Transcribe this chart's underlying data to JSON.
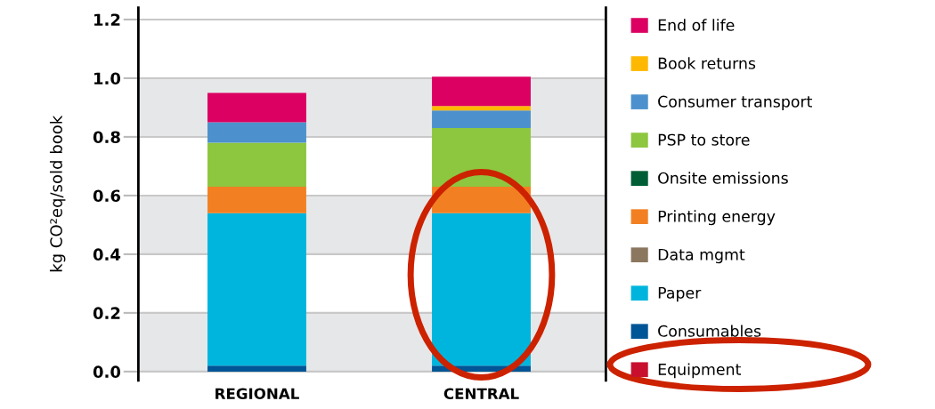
{
  "chart_data": {
    "type": "bar",
    "stacked": true,
    "ylabel": "kg CO²eq/sold book",
    "categories": [
      "REGIONAL",
      "CENTRAL"
    ],
    "series": [
      {
        "name": "Equipment",
        "color": "#c8102e",
        "values": [
          0,
          0
        ]
      },
      {
        "name": "Consumables",
        "color": "#005596",
        "values": [
          0.02,
          0.02
        ]
      },
      {
        "name": "Paper",
        "color": "#00b5dd",
        "values": [
          0.52,
          0.52
        ]
      },
      {
        "name": "Data mgmt",
        "color": "#8b7760",
        "values": [
          0,
          0
        ]
      },
      {
        "name": "Printing energy",
        "color": "#f28023",
        "values": [
          0.09,
          0.09
        ]
      },
      {
        "name": "Onsite emissions",
        "color": "#005e36",
        "values": [
          0,
          0
        ]
      },
      {
        "name": "PSP to store",
        "color": "#8dc63f",
        "values": [
          0.15,
          0.2
        ]
      },
      {
        "name": "Consumer transport",
        "color": "#4c91cd",
        "values": [
          0.07,
          0.06
        ]
      },
      {
        "name": "Book returns",
        "color": "#ffb800",
        "values": [
          0,
          0.015
        ]
      },
      {
        "name": "End of life",
        "color": "#dc0062",
        "values": [
          0.1,
          0.1
        ]
      }
    ],
    "ylim": [
      -0.03,
      1.24
    ],
    "yticks": [
      {
        "value": 0,
        "label": "0.0"
      },
      0.2,
      0.4,
      0.6,
      0.8,
      {
        "value": 1,
        "label": "1.0"
      },
      1.2
    ],
    "grid": "y",
    "legend": "right",
    "bands": [
      {
        "axis": "y",
        "from": 0,
        "to": 0.2,
        "color": "#e6e7e8"
      },
      {
        "axis": "y",
        "from": 0.4,
        "to": 0.6,
        "color": "#e6e7e8"
      },
      {
        "axis": "y",
        "from": 0.8,
        "to": 1.0,
        "color": "#e6e7e8"
      }
    ]
  }
}
